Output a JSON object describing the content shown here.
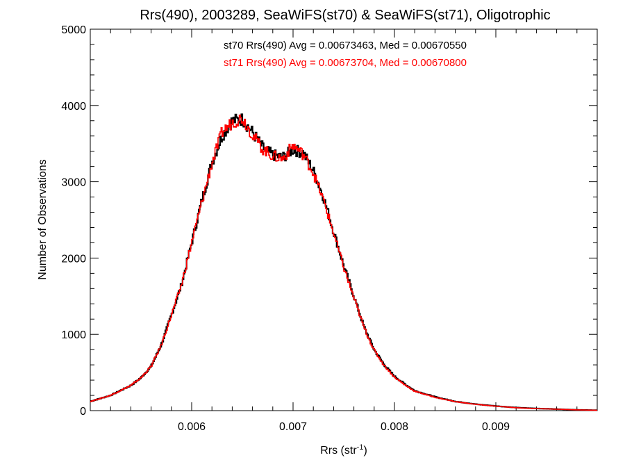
{
  "chart_data": {
    "type": "line",
    "title": "Rrs(490), 2003289, SeaWiFS(st70) & SeaWiFS(st71), Oligotrophic",
    "xlabel_base": "Rrs (str",
    "xlabel_sup": "-1",
    "xlabel_close": ")",
    "ylabel": "Number of Observations",
    "xlim": [
      0.005,
      0.01
    ],
    "ylim": [
      0,
      5000
    ],
    "x_ticks": [
      0.006,
      0.007,
      0.008,
      0.009
    ],
    "x_tick_labels": [
      "0.006",
      "0.007",
      "0.008",
      "0.009"
    ],
    "y_ticks": [
      0,
      1000,
      2000,
      3000,
      4000,
      5000
    ],
    "y_tick_labels": [
      "0",
      "1000",
      "2000",
      "3000",
      "4000",
      "5000"
    ],
    "grid": false,
    "annotations": [
      {
        "text": "st70 Rrs(490) Avg = 0.00673463, Med = 0.00670550",
        "color": "#000000"
      },
      {
        "text": "st71 Rrs(490) Avg = 0.00673704, Med = 0.00670800",
        "color": "#ff0000"
      }
    ],
    "x": [
      0.005,
      0.0052,
      0.0054,
      0.0055,
      0.0056,
      0.0057,
      0.0058,
      0.0059,
      0.006,
      0.0061,
      0.0062,
      0.0063,
      0.0064,
      0.0065,
      0.0066,
      0.0067,
      0.0068,
      0.0069,
      0.007,
      0.0071,
      0.0072,
      0.0073,
      0.0074,
      0.0075,
      0.0076,
      0.0077,
      0.0078,
      0.0079,
      0.008,
      0.0081,
      0.0082,
      0.0084,
      0.0086,
      0.0088,
      0.009,
      0.0092,
      0.0094,
      0.0096,
      0.0098,
      0.01
    ],
    "series": [
      {
        "name": "st70",
        "color": "#000000",
        "values": [
          120,
          200,
          330,
          430,
          580,
          860,
          1250,
          1650,
          2200,
          2750,
          3250,
          3600,
          3800,
          3820,
          3650,
          3450,
          3350,
          3320,
          3420,
          3380,
          3150,
          2800,
          2350,
          1900,
          1500,
          1100,
          800,
          600,
          450,
          350,
          260,
          180,
          120,
          85,
          60,
          40,
          28,
          20,
          10,
          5
        ]
      },
      {
        "name": "st71",
        "color": "#ff0000",
        "values": [
          120,
          200,
          330,
          430,
          580,
          860,
          1250,
          1650,
          2200,
          2730,
          3240,
          3650,
          3780,
          3840,
          3620,
          3430,
          3340,
          3300,
          3480,
          3360,
          3120,
          2760,
          2330,
          1880,
          1480,
          1090,
          790,
          590,
          440,
          340,
          255,
          175,
          118,
          83,
          58,
          38,
          27,
          19,
          10,
          5
        ]
      }
    ]
  }
}
